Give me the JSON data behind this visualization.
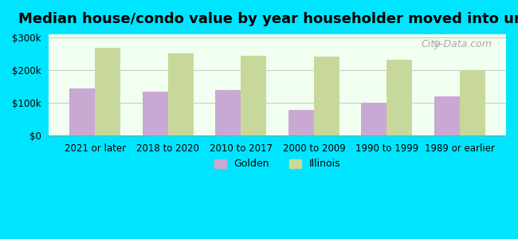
{
  "title": "Median house/condo value by year householder moved into unit",
  "categories": [
    "2021 or later",
    "2018 to 2020",
    "2010 to 2017",
    "2000 to 2009",
    "1990 to 1999",
    "1989 or earlier"
  ],
  "golden_values": [
    145000,
    135000,
    140000,
    78000,
    100000,
    120000
  ],
  "illinois_values": [
    268000,
    252000,
    243000,
    242000,
    232000,
    200000
  ],
  "golden_color": "#c9a8d4",
  "illinois_color": "#c8d89a",
  "background_color": "#00e5ff",
  "plot_bg_color": "#f0fff0",
  "yticks": [
    0,
    100000,
    200000,
    300000
  ],
  "ytick_labels": [
    "$0",
    "$100k",
    "$200k",
    "$300k"
  ],
  "ylim": [
    0,
    310000
  ],
  "legend_golden": "Golden",
  "legend_illinois": "Illinois",
  "bar_width": 0.35
}
